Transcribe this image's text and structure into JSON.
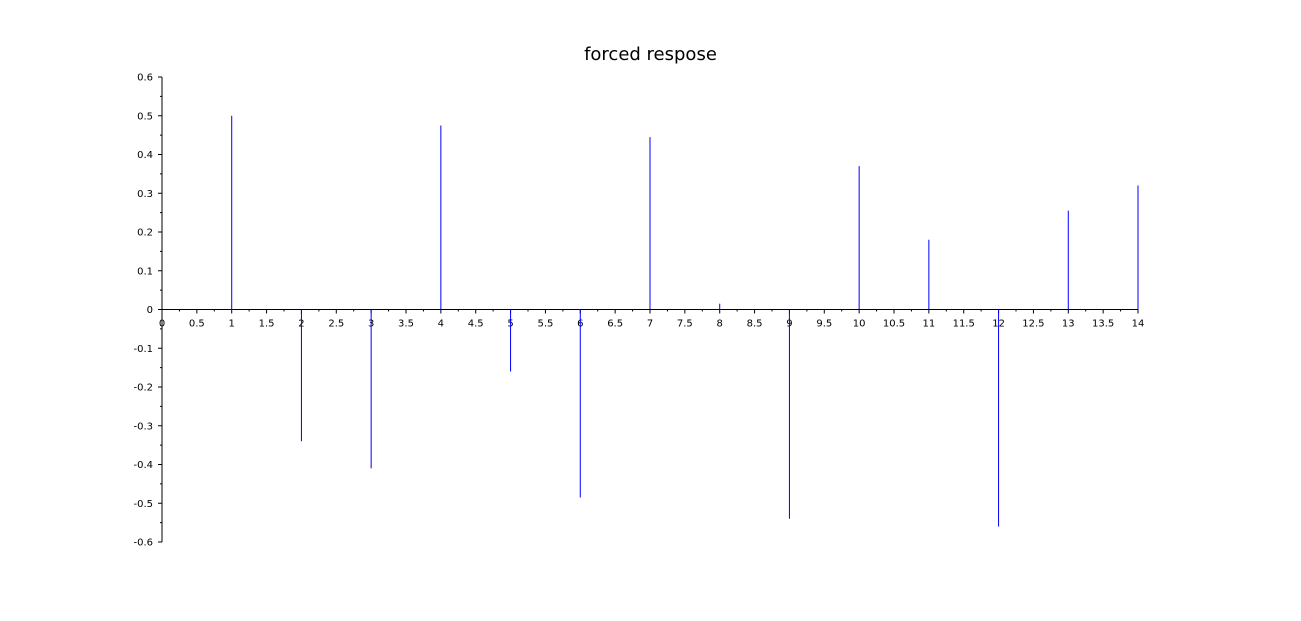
{
  "chart_data": {
    "type": "stem",
    "title": "forced respose",
    "xlabel": "",
    "ylabel": "",
    "xlim": [
      0,
      14
    ],
    "ylim": [
      -0.6,
      0.6
    ],
    "x_ticks": [
      "0",
      "0.5",
      "1",
      "1.5",
      "2",
      "2.5",
      "3",
      "3.5",
      "4",
      "4.5",
      "5",
      "5.5",
      "6",
      "6.5",
      "7",
      "7.5",
      "8",
      "8.5",
      "9",
      "9.5",
      "10",
      "10.5",
      "11",
      "11.5",
      "12",
      "12.5",
      "13",
      "13.5",
      "14"
    ],
    "y_ticks": [
      "0.6",
      "0.5",
      "0.4",
      "0.3",
      "0.2",
      "0.1",
      "0",
      "-0.1",
      "-0.2",
      "-0.3",
      "-0.4",
      "-0.5",
      "-0.6"
    ],
    "grid": false,
    "series": [
      {
        "color": "#0000ff",
        "x": [
          0,
          1,
          2,
          3,
          4,
          5,
          6,
          7,
          8,
          9,
          10,
          11,
          12,
          13,
          14
        ],
        "values": [
          0,
          0.5,
          -0.34,
          -0.41,
          0.475,
          -0.16,
          -0.485,
          0.445,
          0.015,
          -0.54,
          0.37,
          0.18,
          -0.56,
          0.255,
          0.32
        ]
      }
    ]
  }
}
